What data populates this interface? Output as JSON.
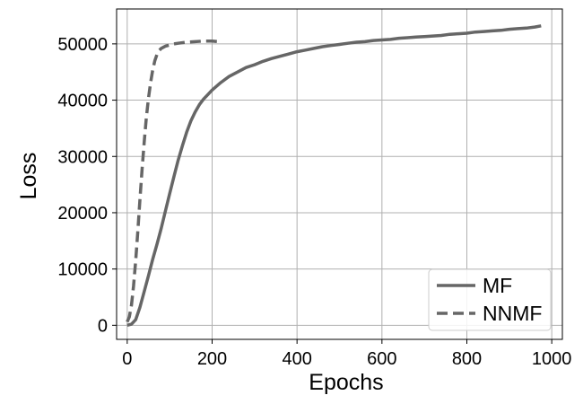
{
  "chart_data": {
    "type": "line",
    "xlabel": "Epochs",
    "ylabel": "Loss",
    "xlim": [
      -25,
      1025
    ],
    "ylim": [
      -2500,
      56200
    ],
    "xticks": [
      0,
      200,
      400,
      600,
      800,
      1000
    ],
    "yticks": [
      0,
      10000,
      20000,
      30000,
      40000,
      50000
    ],
    "grid": true,
    "legend_position": "bottom-right",
    "series": [
      {
        "name": "MF",
        "style": "solid",
        "color": "#666666",
        "x": [
          0,
          10,
          20,
          30,
          40,
          50,
          60,
          70,
          80,
          90,
          100,
          110,
          120,
          130,
          140,
          150,
          160,
          170,
          180,
          190,
          200,
          220,
          240,
          260,
          280,
          300,
          320,
          340,
          360,
          380,
          400,
          420,
          440,
          460,
          480,
          500,
          520,
          540,
          560,
          580,
          600,
          620,
          640,
          660,
          680,
          700,
          720,
          740,
          760,
          780,
          800,
          820,
          840,
          860,
          880,
          900,
          920,
          940,
          960,
          975
        ],
        "y": [
          0,
          200,
          1000,
          3200,
          6000,
          8800,
          11700,
          14400,
          17200,
          20300,
          23400,
          26400,
          29300,
          31900,
          34300,
          36300,
          37900,
          39200,
          40200,
          41000,
          41800,
          43100,
          44200,
          45000,
          45800,
          46300,
          46900,
          47400,
          47800,
          48200,
          48600,
          48900,
          49200,
          49500,
          49700,
          49900,
          50100,
          50300,
          50400,
          50600,
          50700,
          50800,
          51000,
          51100,
          51200,
          51300,
          51400,
          51500,
          51700,
          51800,
          51900,
          52100,
          52200,
          52300,
          52400,
          52600,
          52700,
          52800,
          53000,
          53200
        ]
      },
      {
        "name": "NNMF",
        "style": "dashed",
        "color": "#666666",
        "x": [
          0,
          5,
          10,
          15,
          20,
          25,
          30,
          35,
          40,
          45,
          50,
          55,
          60,
          65,
          70,
          75,
          80,
          90,
          100,
          110,
          120,
          140,
          160,
          180,
          200,
          215
        ],
        "y": [
          600,
          1500,
          3600,
          7000,
          11500,
          16800,
          22300,
          27700,
          32600,
          36800,
          40300,
          43100,
          45300,
          47000,
          48100,
          48800,
          49200,
          49600,
          49800,
          50000,
          50100,
          50300,
          50400,
          50500,
          50500,
          50400
        ]
      }
    ]
  }
}
